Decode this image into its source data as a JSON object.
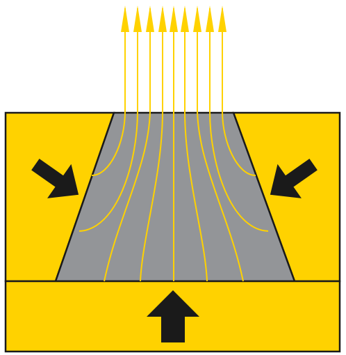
{
  "colors": {
    "background": "#ffffff",
    "block_fill": "#ffd200",
    "outline": "#1a1a1a",
    "material_fill": "#939598",
    "flow_line": "#ffd200",
    "arrow": "#1a1a1a"
  },
  "icons": {
    "left_force": "arrow-down-right-icon",
    "right_force": "arrow-down-left-icon",
    "bottom_force": "arrow-up-icon",
    "flow": "arrow-up-icon"
  },
  "flow_line_count": 9
}
